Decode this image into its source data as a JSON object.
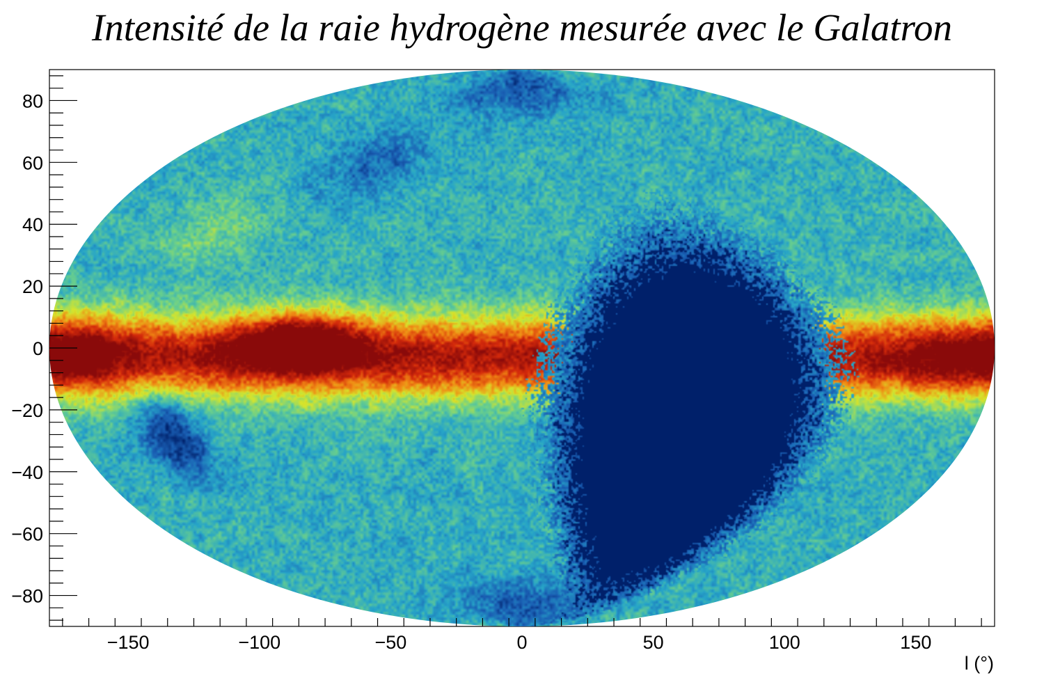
{
  "chart_data": {
    "type": "heatmap",
    "projection": "aitoff",
    "title": "Intensité de la raie hydrogène mesurée avec le Galatron",
    "xlabel": "l (°)",
    "ylabel": "",
    "xlim": [
      -180,
      180
    ],
    "ylim": [
      -90,
      90
    ],
    "x_ticks": [
      -150,
      -100,
      -50,
      0,
      50,
      100,
      150
    ],
    "y_ticks": [
      -80,
      -60,
      -40,
      -20,
      0,
      20,
      40,
      60,
      80
    ],
    "x_tick_labels": [
      "−150",
      "−100",
      "−50",
      "0",
      "50",
      "100",
      "150"
    ],
    "y_tick_labels": [
      "−80",
      "−60",
      "−40",
      "−20",
      "0",
      "20",
      "40",
      "60",
      "80"
    ],
    "grid": false,
    "colormap": [
      "#00206a",
      "#1a5fb4",
      "#27a5c8",
      "#6bd08b",
      "#d6e52c",
      "#f08a14",
      "#d42a0b",
      "#8a0a0a"
    ],
    "features": [
      {
        "kind": "band",
        "b_center": -3,
        "b_sigma": 13,
        "intensity": 0.62
      },
      {
        "kind": "blob",
        "l": -85,
        "b": 2,
        "l_sigma": 24,
        "b_sigma": 9,
        "intensity": 0.45
      },
      {
        "kind": "blob",
        "l": -168,
        "b": 0,
        "l_sigma": 18,
        "b_sigma": 12,
        "intensity": 0.2
      },
      {
        "kind": "blob",
        "l": 165,
        "b": -3,
        "l_sigma": 22,
        "b_sigma": 11,
        "intensity": 0.15
      },
      {
        "kind": "blob",
        "l": -130,
        "b": 38,
        "l_sigma": 22,
        "b_sigma": 12,
        "intensity": 0.12
      },
      {
        "kind": "blob",
        "l": -140,
        "b": -28,
        "l_sigma": 12,
        "b_sigma": 14,
        "intensity": -0.3
      },
      {
        "kind": "blob",
        "l": -75,
        "b": 60,
        "l_sigma": 25,
        "b_sigma": 12,
        "intensity": -0.15
      },
      {
        "kind": "blob",
        "l": 0,
        "b": 85,
        "l_sigma": 60,
        "b_sigma": 10,
        "intensity": -0.2
      },
      {
        "kind": "blob",
        "l": 0,
        "b": -85,
        "l_sigma": 60,
        "b_sigma": 10,
        "intensity": -0.2
      },
      {
        "kind": "blind_region",
        "l": 65,
        "b": -25,
        "l_radius": 47,
        "b_radius": 56,
        "intensity": 0
      }
    ],
    "base_intensity": 0.32
  }
}
